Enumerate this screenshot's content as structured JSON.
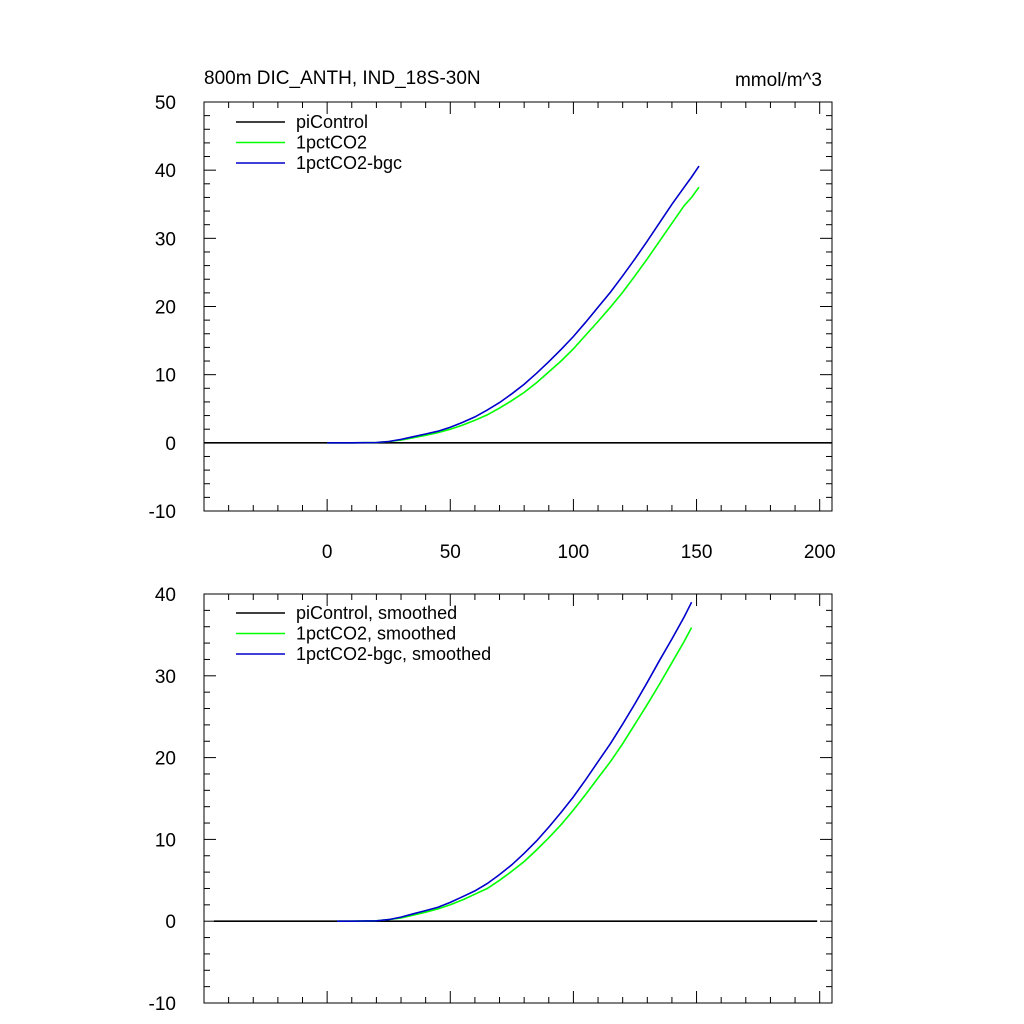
{
  "figure": {
    "title": "800m DIC_ANTH, IND_18S-30N",
    "units": "mmol/m^3"
  },
  "chart_data": [
    {
      "type": "line",
      "id": "top",
      "title": "800m DIC_ANTH, IND_18S-30N",
      "units_label": "mmol/m^3",
      "xlim": [
        -50,
        205
      ],
      "ylim": [
        -10,
        50
      ],
      "xticks": [
        0,
        50,
        100,
        150,
        200
      ],
      "xtick_labels": [
        "0",
        "50",
        "100",
        "150",
        "200"
      ],
      "yticks": [
        -10,
        0,
        10,
        20,
        30,
        40,
        50
      ],
      "ytick_labels": [
        "-10",
        "0",
        "10",
        "20",
        "30",
        "40",
        "50"
      ],
      "legend_position": "top-left",
      "series": [
        {
          "name": "piControl",
          "color": "#000000",
          "x": [
            -50,
            205
          ],
          "y": [
            0,
            0
          ]
        },
        {
          "name": "1pctCO2",
          "color": "#00ff00",
          "x": [
            0,
            10,
            20,
            25,
            30,
            35,
            40,
            45,
            50,
            55,
            60,
            65,
            70,
            75,
            80,
            85,
            90,
            95,
            100,
            105,
            110,
            115,
            120,
            125,
            130,
            135,
            140,
            145,
            148,
            151
          ],
          "y": [
            0,
            0,
            0.05,
            0.2,
            0.4,
            0.75,
            1.1,
            1.5,
            2.0,
            2.6,
            3.3,
            4.1,
            5.1,
            6.2,
            7.4,
            8.8,
            10.4,
            12.0,
            13.8,
            15.8,
            17.8,
            19.9,
            22.1,
            24.5,
            27.0,
            29.6,
            32.2,
            34.8,
            36.0,
            37.5
          ]
        },
        {
          "name": "1pctCO2-bgc",
          "color": "#0000cc",
          "x": [
            0,
            10,
            20,
            25,
            30,
            35,
            40,
            45,
            50,
            55,
            60,
            65,
            70,
            75,
            80,
            85,
            90,
            95,
            100,
            105,
            110,
            115,
            120,
            125,
            130,
            135,
            140,
            145,
            148,
            151
          ],
          "y": [
            0,
            0,
            0.05,
            0.2,
            0.5,
            0.9,
            1.3,
            1.7,
            2.3,
            3.0,
            3.8,
            4.8,
            5.9,
            7.2,
            8.6,
            10.2,
            11.9,
            13.7,
            15.6,
            17.7,
            19.9,
            22.1,
            24.5,
            27.0,
            29.6,
            32.3,
            35.0,
            37.5,
            39.0,
            40.6
          ]
        }
      ]
    },
    {
      "type": "line",
      "id": "bottom",
      "title": "",
      "xlim": [
        -50,
        205
      ],
      "ylim": [
        -10,
        40
      ],
      "xticks": [
        0,
        50,
        100,
        150,
        200
      ],
      "yticks": [
        -10,
        0,
        10,
        20,
        30,
        40
      ],
      "ytick_labels": [
        "-10",
        "0",
        "10",
        "20",
        "30",
        "40"
      ],
      "legend_position": "top-left",
      "series": [
        {
          "name": "piControl, smoothed",
          "color": "#000000",
          "x": [
            -46,
            199
          ],
          "y": [
            0,
            0
          ]
        },
        {
          "name": "1pctCO2, smoothed",
          "color": "#00ff00",
          "x": [
            4,
            10,
            20,
            25,
            30,
            35,
            40,
            45,
            50,
            55,
            60,
            65,
            70,
            75,
            80,
            85,
            90,
            95,
            100,
            105,
            110,
            115,
            120,
            125,
            130,
            135,
            140,
            145,
            148
          ],
          "y": [
            0,
            0,
            0.05,
            0.2,
            0.4,
            0.75,
            1.1,
            1.5,
            2.0,
            2.6,
            3.3,
            4.0,
            5.0,
            6.1,
            7.3,
            8.7,
            10.2,
            11.8,
            13.6,
            15.5,
            17.5,
            19.5,
            21.7,
            24.1,
            26.5,
            29.0,
            31.6,
            34.2,
            35.9
          ]
        },
        {
          "name": "1pctCO2-bgc, smoothed",
          "color": "#0000cc",
          "x": [
            4,
            10,
            20,
            25,
            30,
            35,
            40,
            45,
            50,
            55,
            60,
            65,
            70,
            75,
            80,
            85,
            90,
            95,
            100,
            105,
            110,
            115,
            120,
            125,
            130,
            135,
            140,
            145,
            148
          ],
          "y": [
            0,
            0,
            0.05,
            0.2,
            0.5,
            0.9,
            1.3,
            1.7,
            2.3,
            3.0,
            3.7,
            4.6,
            5.7,
            6.9,
            8.3,
            9.8,
            11.5,
            13.3,
            15.2,
            17.3,
            19.5,
            21.7,
            24.1,
            26.6,
            29.2,
            31.9,
            34.5,
            37.2,
            39.0
          ]
        }
      ]
    }
  ]
}
